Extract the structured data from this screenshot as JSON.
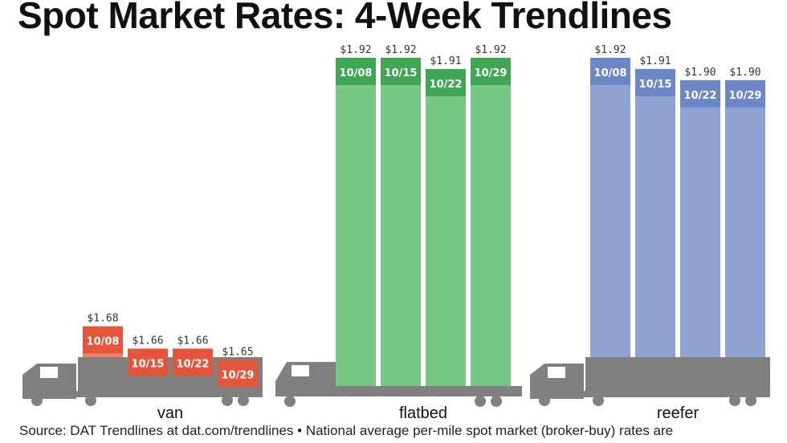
{
  "title": "Spot Market Rates: 4-Week Trendlines",
  "source": "Source: DAT Trendlines at dat.com/trendlines • National average per-mile spot market (broker-buy) rates are",
  "chart_data": {
    "type": "bar",
    "title": "Spot Market Rates: 4-Week Trendlines",
    "categories": [
      "10/08",
      "10/15",
      "10/22",
      "10/29"
    ],
    "value_prefix": "$",
    "groups": [
      {
        "name": "van",
        "values": [
          1.68,
          1.66,
          1.66,
          1.65
        ],
        "value_labels": [
          "$1.68",
          "$1.66",
          "$1.66",
          "$1.65"
        ],
        "color": "#ef8068",
        "band_color": "#e4553c"
      },
      {
        "name": "flatbed",
        "values": [
          1.92,
          1.92,
          1.91,
          1.92
        ],
        "value_labels": [
          "$1.92",
          "$1.92",
          "$1.91",
          "$1.92"
        ],
        "color": "#76c784",
        "band_color": "#3fa653"
      },
      {
        "name": "reefer",
        "values": [
          1.92,
          1.91,
          1.9,
          1.9
        ],
        "value_labels": [
          "$1.92",
          "$1.91",
          "$1.90",
          "$1.90"
        ],
        "color": "#8ea3d2",
        "band_color": "#6c86c6"
      }
    ],
    "truck_color": "#808080"
  }
}
